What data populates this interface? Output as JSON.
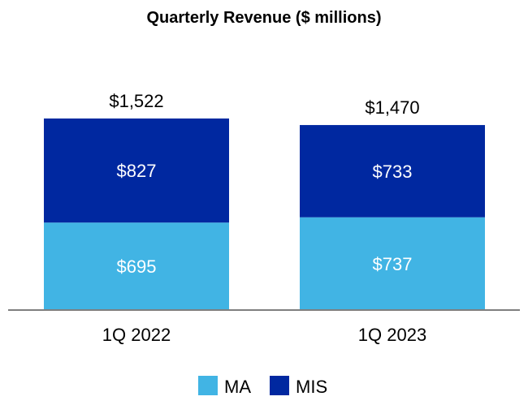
{
  "chart_data": {
    "type": "bar",
    "stacked": true,
    "title": "Quarterly Revenue ($ millions)",
    "xlabel": "",
    "ylabel": "",
    "categories": [
      "1Q 2022",
      "1Q 2023"
    ],
    "series": [
      {
        "name": "MA",
        "values": [
          695,
          737
        ],
        "labels": [
          "$695",
          "$737"
        ],
        "color": "#41b4e4"
      },
      {
        "name": "MIS",
        "values": [
          827,
          733
        ],
        "labels": [
          "$827",
          "$733"
        ],
        "color": "#0028a0"
      }
    ],
    "totals": [
      1522,
      1470
    ],
    "total_labels": [
      "$1,522",
      "$1,470"
    ],
    "ylim": [
      0,
      1522
    ],
    "grid": false,
    "legend_position": "bottom",
    "axis_color": "#7f7f7f"
  }
}
